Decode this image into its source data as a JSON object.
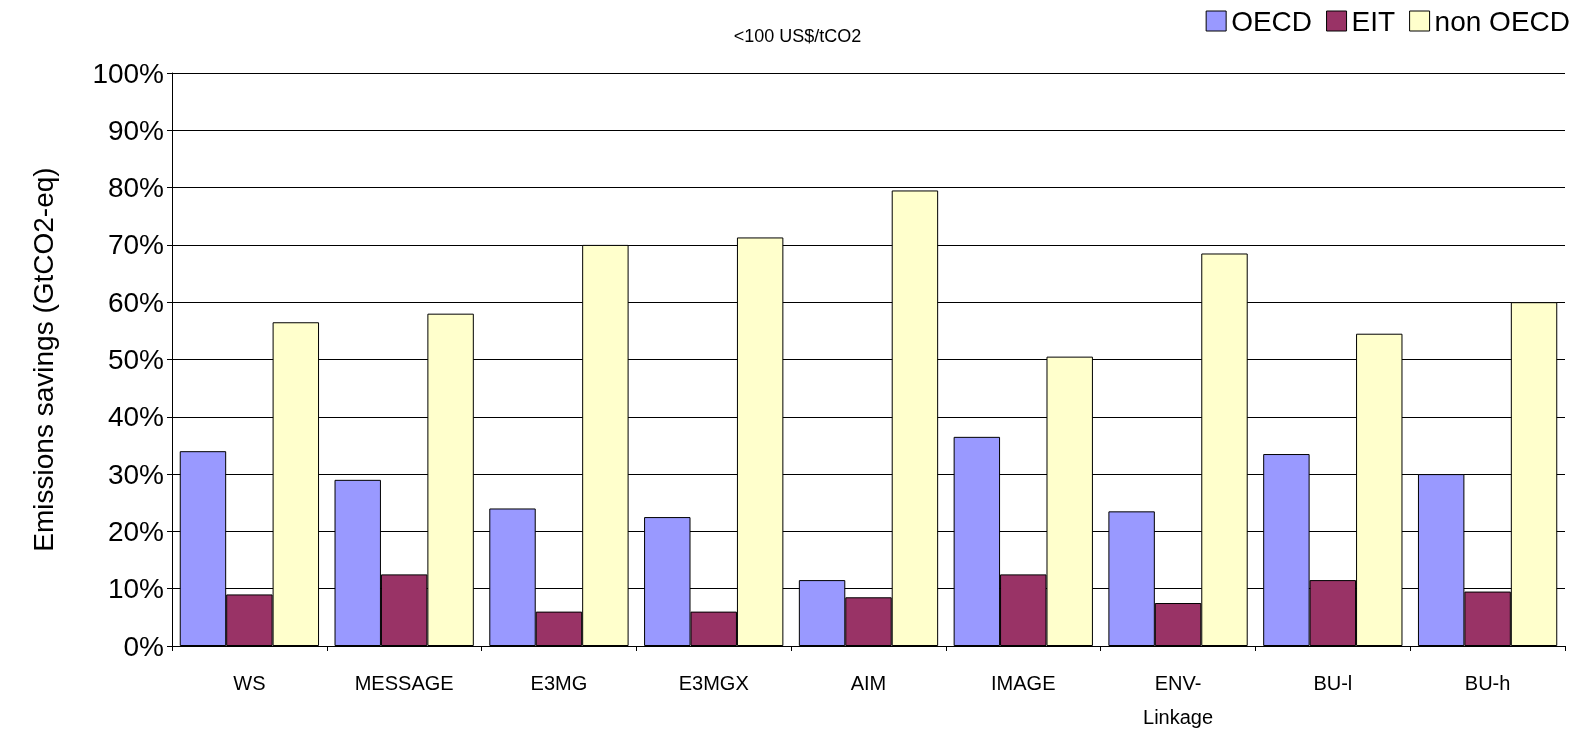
{
  "chart_data": {
    "type": "bar",
    "title": "<100 US$/tCO2",
    "ylabel": "Emissions savings (GtCO2-eq)",
    "categories": [
      "WS",
      "MESSAGE",
      "E3MG",
      "E3MGX",
      "AIM",
      "IMAGE",
      "ENV-Linkage",
      "BU-l",
      "BU-h"
    ],
    "series": [
      {
        "name": "OECD",
        "color": "#9999ff",
        "values": [
          34,
          29,
          24,
          22.5,
          11.5,
          36.5,
          23.5,
          33.5,
          30
        ]
      },
      {
        "name": "EIT",
        "color": "#993366",
        "values": [
          9,
          12.5,
          6,
          6,
          8.5,
          12.5,
          7.5,
          11.5,
          9.5
        ]
      },
      {
        "name": "non OECD",
        "color": "#ffffcc",
        "values": [
          56.5,
          58,
          70,
          71.3,
          79.5,
          50.5,
          68.5,
          54.5,
          60
        ]
      }
    ],
    "ylim": [
      0,
      100
    ],
    "yticks": [
      {
        "value": 0,
        "label": "0%"
      },
      {
        "value": 10,
        "label": "10%"
      },
      {
        "value": 20,
        "label": "20%"
      },
      {
        "value": 30,
        "label": "30%"
      },
      {
        "value": 40,
        "label": "40%"
      },
      {
        "value": 50,
        "label": "50%"
      },
      {
        "value": 60,
        "label": "60%"
      },
      {
        "value": 70,
        "label": "70%"
      },
      {
        "value": 80,
        "label": "80%"
      },
      {
        "value": 90,
        "label": "90%"
      },
      {
        "value": 100,
        "label": "100%"
      }
    ],
    "grid": "y",
    "legend": "top right"
  }
}
